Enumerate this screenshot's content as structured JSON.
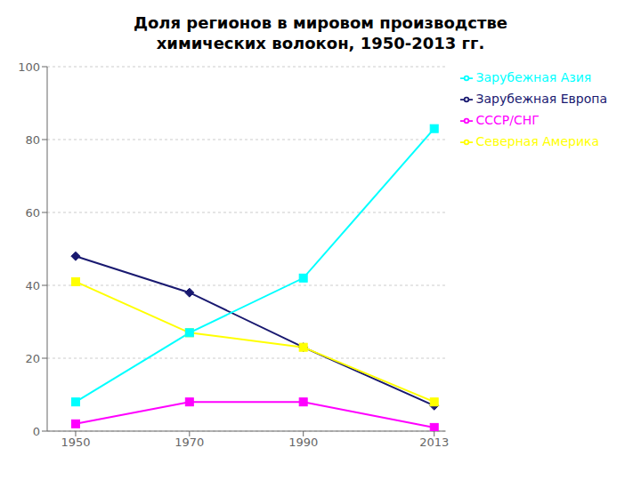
{
  "chart_data": {
    "type": "line",
    "title": "Доля регионов в мировом производстве\nхимических волокон, 1950-2013 гг.",
    "x": [
      1950,
      1970,
      1990,
      2013
    ],
    "series": [
      {
        "name": "Зарубежная Европа",
        "color": "#191970",
        "marker": "diamond",
        "values": [
          48,
          38,
          23,
          7
        ]
      },
      {
        "name": "СССР/СНГ",
        "color": "#FF00FF",
        "marker": "square",
        "values": [
          2,
          8,
          8,
          1
        ]
      },
      {
        "name": "Северная Америка",
        "color": "#FFFF00",
        "marker": "square",
        "values": [
          41,
          27,
          23,
          8
        ]
      },
      {
        "name": "Зарубежная Азия",
        "color": "#00FFFF",
        "marker": "square",
        "values": [
          8,
          27,
          42,
          83
        ]
      }
    ],
    "xlim": [
      1945,
      2015
    ],
    "xticks": [
      1950,
      1970,
      1990,
      2013
    ],
    "ylim": [
      0,
      100
    ],
    "yticks": [
      0,
      20,
      40,
      60,
      80,
      100
    ],
    "grid": true,
    "legend": "right"
  }
}
